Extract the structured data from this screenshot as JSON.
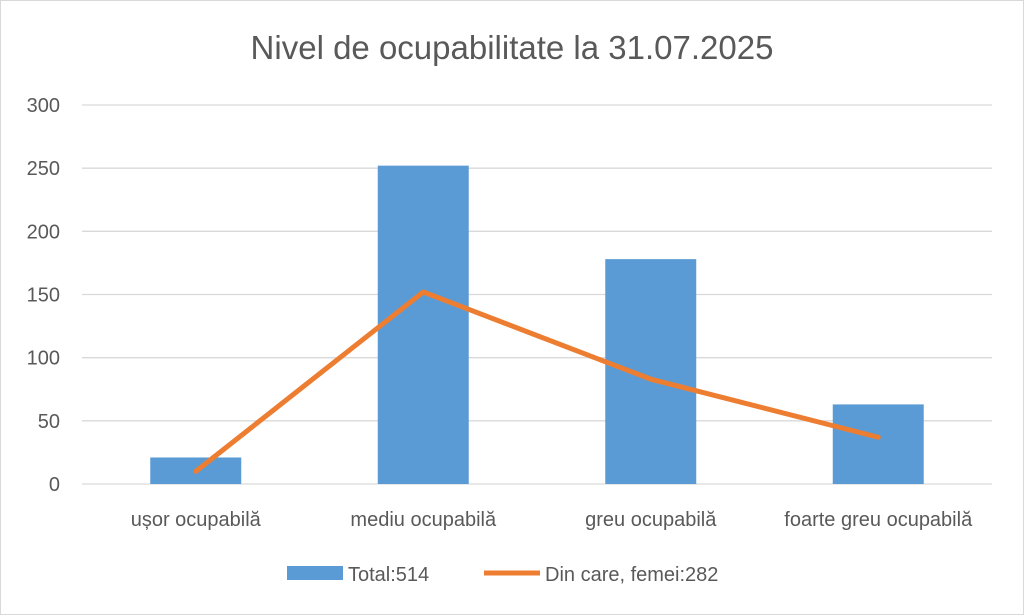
{
  "chart_data": {
    "type": "bar",
    "title": "Nivel de ocupabilitate la 31.07.2025",
    "categories": [
      "ușor ocupabilă",
      "mediu ocupabilă",
      "greu ocupabilă",
      "foarte greu ocupabilă"
    ],
    "y_ticks": [
      "0",
      "50",
      "100",
      "150",
      "200",
      "250",
      "300"
    ],
    "ylim": [
      0,
      300
    ],
    "grid": true,
    "legend_position": "bottom",
    "series": [
      {
        "name": "Total:514",
        "kind": "bar",
        "color": "#5b9bd5",
        "values": [
          21,
          252,
          178,
          63
        ]
      },
      {
        "name": "Din care, femei:282",
        "kind": "line",
        "color": "#ed7d31",
        "values": [
          10,
          152,
          83,
          37
        ]
      }
    ]
  }
}
